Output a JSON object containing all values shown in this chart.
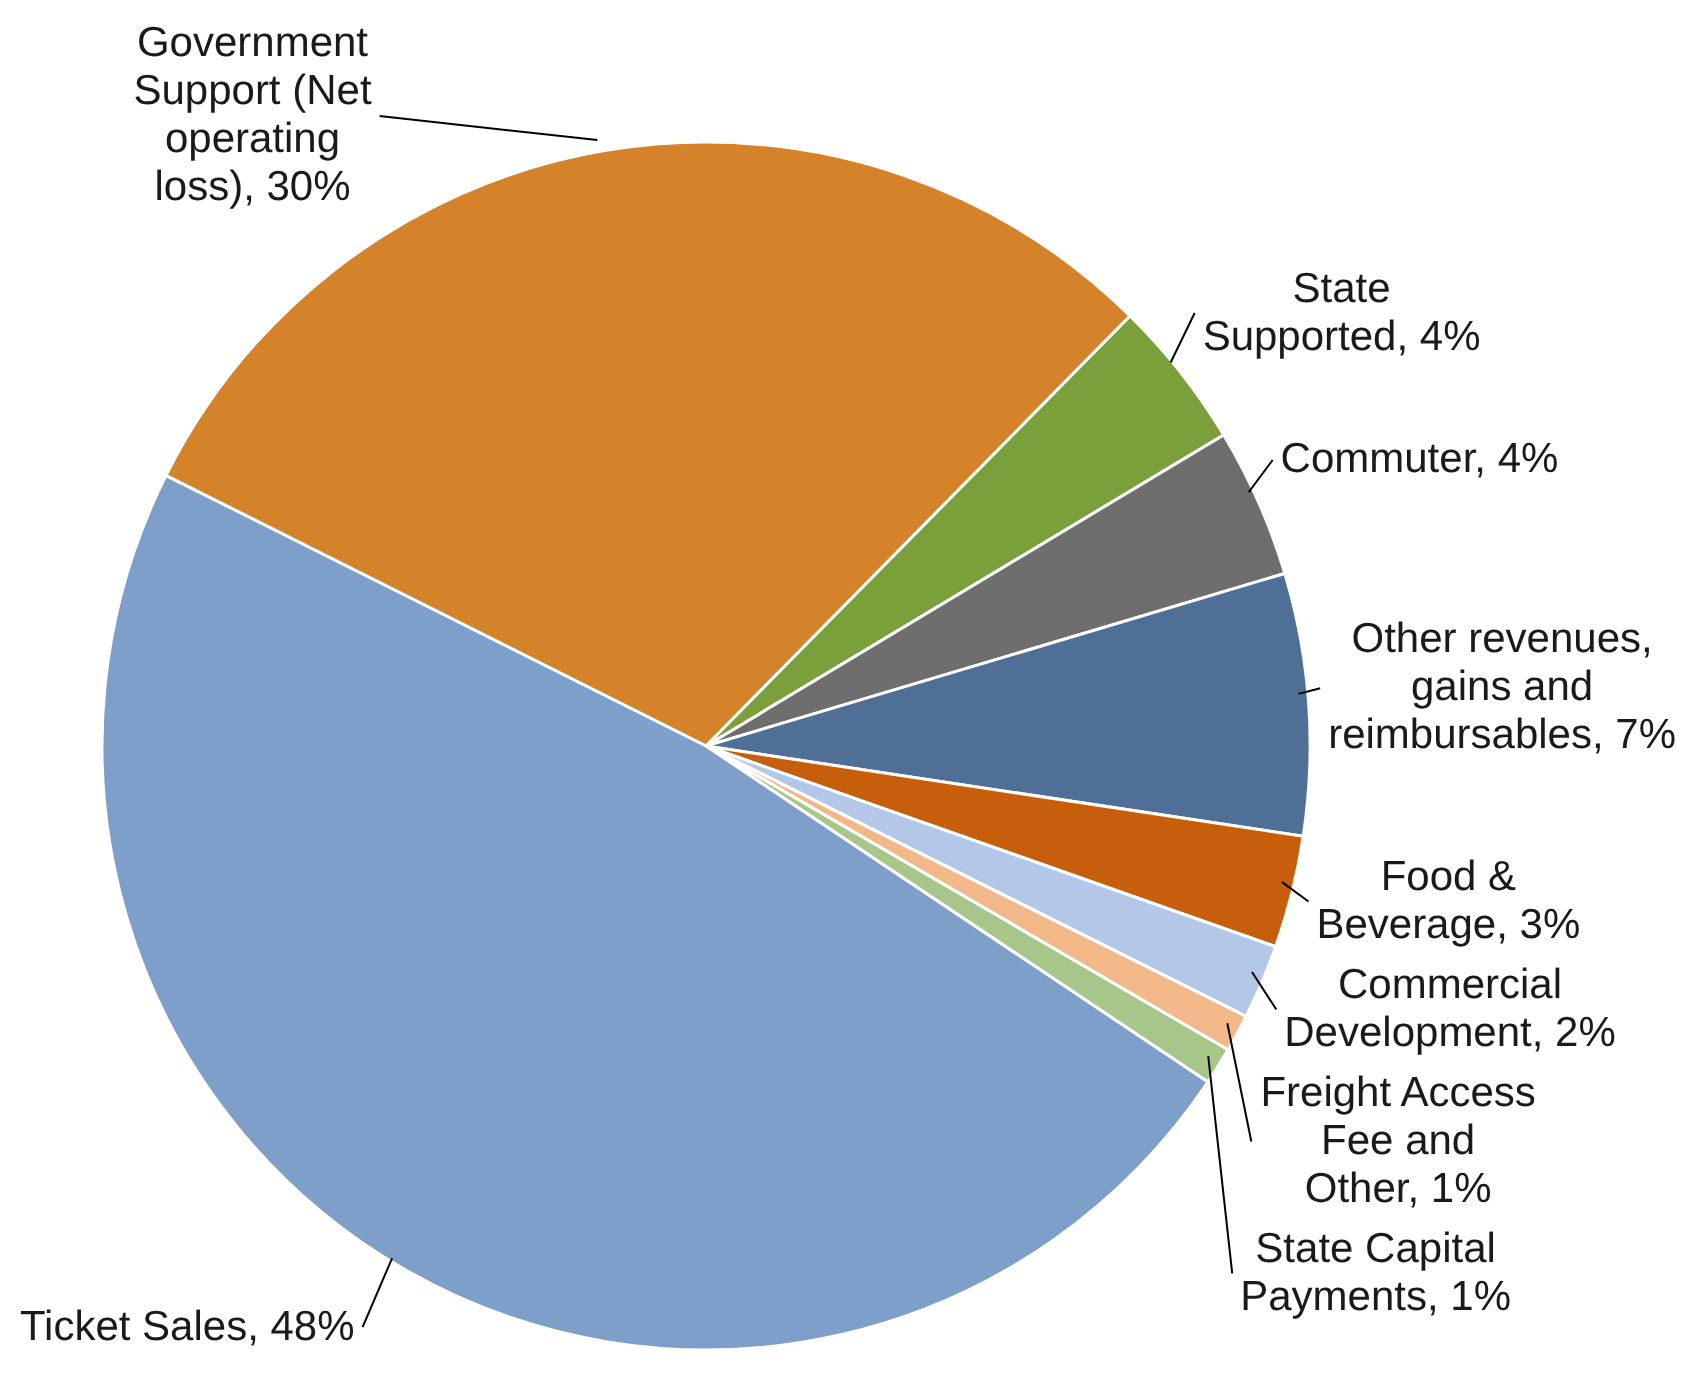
{
  "chart_data": {
    "type": "pie",
    "categories": [
      "Government Support (Net operating loss)",
      "State Supported",
      "Commuter",
      "Other revenues, gains and reimbursables",
      "Food & Beverage",
      "Commercial Development",
      "Freight Access Fee and Other",
      "State Capital Payments",
      "Ticket Sales"
    ],
    "values": [
      30,
      4,
      4,
      7,
      3,
      2,
      1,
      1,
      48
    ],
    "value_labels": [
      "30%",
      "4%",
      "4%",
      "7%",
      "3%",
      "2%",
      "1%",
      "1%",
      "48%"
    ],
    "colors": [
      "#d4832a",
      "#7aa03c",
      "#6e6e6e",
      "#4f6f96",
      "#c65e0c",
      "#b3c8e8",
      "#f2b88a",
      "#a8c58a",
      "#7e9fc9"
    ]
  }
}
